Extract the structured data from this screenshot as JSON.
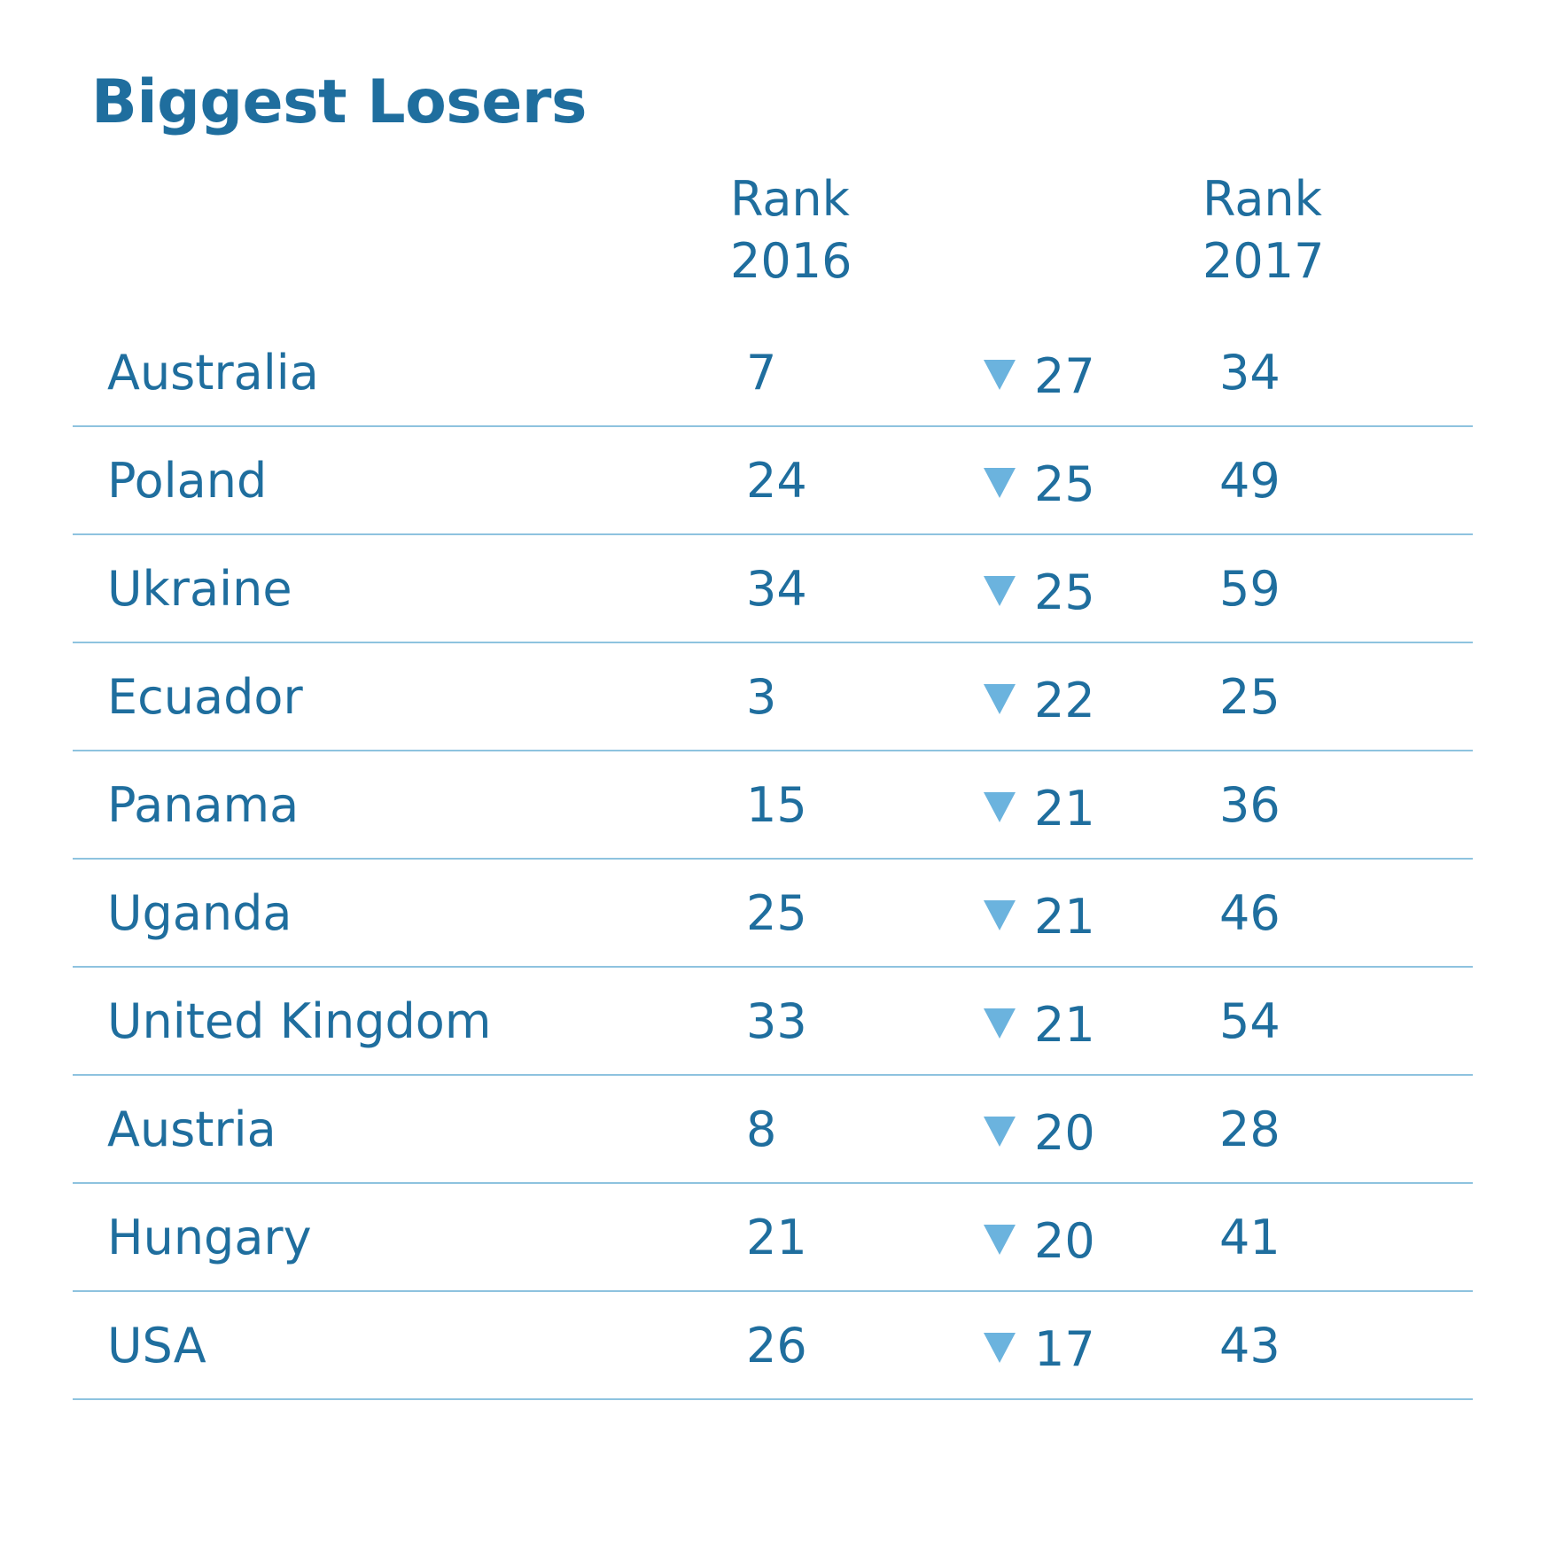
{
  "title": "Biggest Losers",
  "columns": {
    "rank2016": {
      "line1": "Rank",
      "line2": "2016"
    },
    "rank2017": {
      "line1": "Rank",
      "line2": "2017"
    }
  },
  "colors": {
    "text": "#1f6e9e",
    "arrow": "#6bb3de",
    "divider": "#8ec3df"
  },
  "rows": [
    {
      "country": "Australia",
      "rank2016": "7",
      "change": "27",
      "rank2017": "34"
    },
    {
      "country": "Poland",
      "rank2016": "24",
      "change": "25",
      "rank2017": "49"
    },
    {
      "country": "Ukraine",
      "rank2016": "34",
      "change": "25",
      "rank2017": "59"
    },
    {
      "country": "Ecuador",
      "rank2016": "3",
      "change": "22",
      "rank2017": "25"
    },
    {
      "country": "Panama",
      "rank2016": "15",
      "change": "21",
      "rank2017": "36"
    },
    {
      "country": "Uganda",
      "rank2016": "25",
      "change": "21",
      "rank2017": "46"
    },
    {
      "country": "United Kingdom",
      "rank2016": "33",
      "change": "21",
      "rank2017": "54"
    },
    {
      "country": "Austria",
      "rank2016": "8",
      "change": "20",
      "rank2017": "28"
    },
    {
      "country": "Hungary",
      "rank2016": "21",
      "change": "20",
      "rank2017": "41"
    },
    {
      "country": "USA",
      "rank2016": "26",
      "change": "17",
      "rank2017": "43"
    }
  ]
}
